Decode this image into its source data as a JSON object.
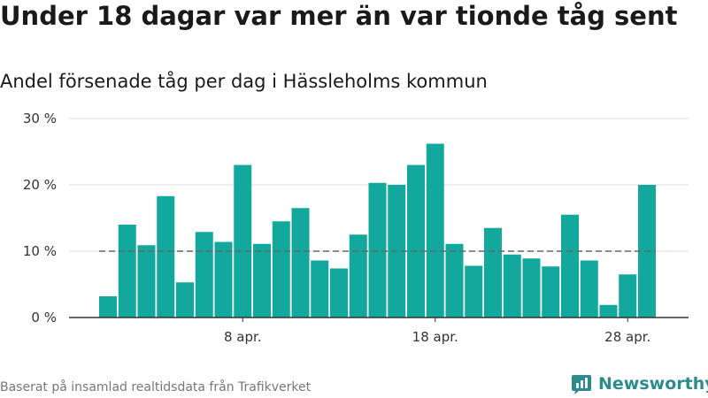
{
  "title": "Under 18 dagar var mer än var tionde tåg sent",
  "subtitle": "Andel försenade tåg per dag i Hässleholms kommun",
  "source": "Baserat på insamlad realtidsdata från Trafikverket",
  "brand": "Newsworthy",
  "colors": {
    "bar": "#13a89e",
    "reference": "#666666",
    "grid": "#dddddd",
    "axis": "#333333",
    "brand": "#2e8b8b"
  },
  "chart_data": {
    "type": "bar",
    "x": [
      "2024-04-01",
      "2024-04-02",
      "2024-04-03",
      "2024-04-04",
      "2024-04-05",
      "2024-04-06",
      "2024-04-07",
      "2024-04-08",
      "2024-04-09",
      "2024-04-10",
      "2024-04-11",
      "2024-04-12",
      "2024-04-13",
      "2024-04-14",
      "2024-04-15",
      "2024-04-16",
      "2024-04-17",
      "2024-04-18",
      "2024-04-19",
      "2024-04-20",
      "2024-04-21",
      "2024-04-22",
      "2024-04-23",
      "2024-04-24",
      "2024-04-25",
      "2024-04-26",
      "2024-04-27",
      "2024-04-28",
      "2024-04-29"
    ],
    "values": [
      3.2,
      14.0,
      10.9,
      18.3,
      5.3,
      12.9,
      11.4,
      23.0,
      11.1,
      14.5,
      16.5,
      8.6,
      7.4,
      12.5,
      20.3,
      20.0,
      23.0,
      26.2,
      11.1,
      7.8,
      13.5,
      9.5,
      8.9,
      7.7,
      15.5,
      8.6,
      1.9,
      6.5,
      20.0
    ],
    "reference_value": 10,
    "ylim": [
      0,
      30
    ],
    "yticks": [
      {
        "value": 0,
        "label": "0 %"
      },
      {
        "value": 10,
        "label": "10 %"
      },
      {
        "value": 20,
        "label": "20 %"
      },
      {
        "value": 30,
        "label": "30 %"
      }
    ],
    "xticks": [
      {
        "date": "2024-04-08",
        "label": "8 apr."
      },
      {
        "date": "2024-04-18",
        "label": "18 apr."
      },
      {
        "date": "2024-04-28",
        "label": "28 apr."
      }
    ],
    "grid": true
  }
}
